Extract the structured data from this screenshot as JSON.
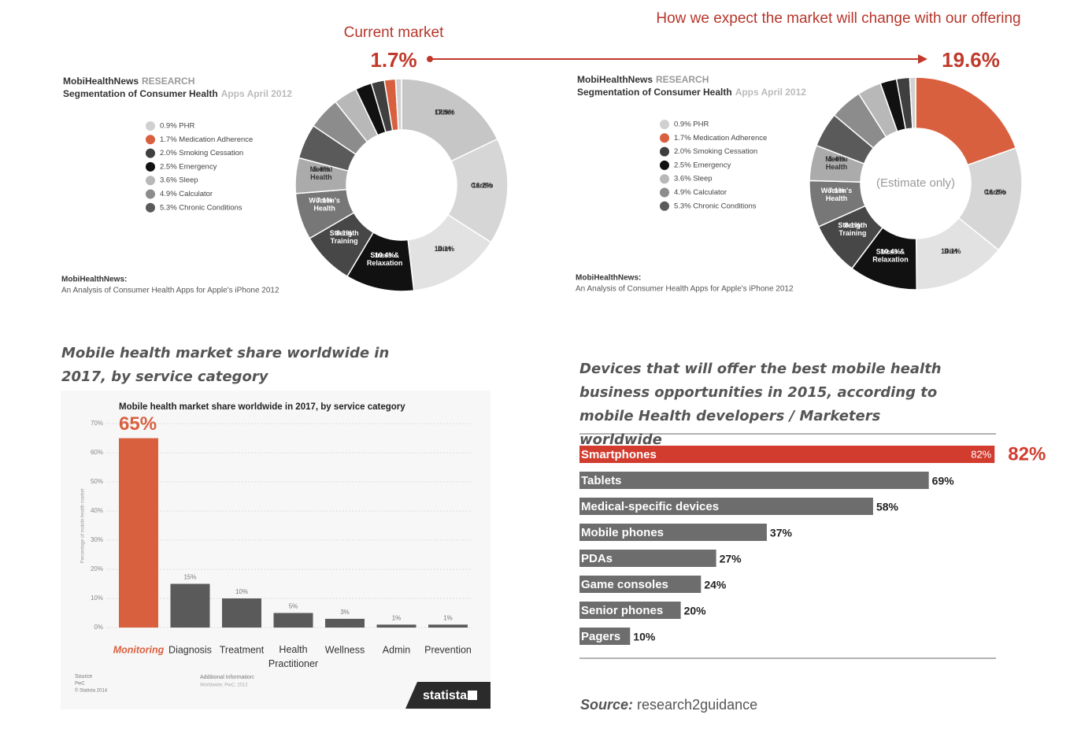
{
  "annotations": {
    "current_label": "Current market",
    "future_label": "How we expect the market will change with our offering"
  },
  "chart_data": [
    {
      "type": "donut",
      "header": [
        "MobiHealthNews",
        "RESEARCH"
      ],
      "subheader": [
        "Segmentation of Consumer Health",
        "Apps April 2012"
      ],
      "categories": [
        "Other",
        "Cardio",
        "Diet",
        "Stress & Relaxation",
        "Strength Training",
        "Women's Health",
        "Mental Health",
        null,
        null,
        null,
        null,
        null,
        null,
        null
      ],
      "values": [
        17.9,
        16.2,
        14.1,
        10.4,
        8.1,
        7.1,
        5.4,
        5.3,
        4.9,
        3.6,
        2.5,
        2.0,
        1.7,
        0.9
      ],
      "value_labels": [
        "17.9%",
        "16.2%",
        "14.1%",
        "10.4%",
        "8.1%",
        "7.1%",
        "5.4%",
        null,
        null,
        null,
        null,
        null,
        "1.7%",
        null
      ],
      "colors": [
        "#c6c6c6",
        "#d6d6d6",
        "#e2e2e2",
        "#111111",
        "#474747",
        "#777777",
        "#ababab",
        "#5a5a5a",
        "#8c8c8c",
        "#b8b8b8",
        "#111111",
        "#3f3f3f",
        "#d9603f",
        "#d0d0d0"
      ],
      "legend": [
        {
          "label": "0.9% PHR",
          "color": "#d0d0d0"
        },
        {
          "label": "1.7% Medication Adherence",
          "color": "#d9603f"
        },
        {
          "label": "2.0% Smoking Cessation",
          "color": "#3f3f3f"
        },
        {
          "label": "2.5% Emergency",
          "color": "#111111"
        },
        {
          "label": "3.6% Sleep",
          "color": "#b8b8b8"
        },
        {
          "label": "4.9% Calculator",
          "color": "#8c8c8c"
        },
        {
          "label": "5.3% Chronic Conditions",
          "color": "#5a5a5a"
        }
      ],
      "footer": [
        "MobiHealthNews:",
        "An Analysis of Consumer Health Apps for Apple's iPhone 2012"
      ]
    },
    {
      "type": "donut",
      "header": [
        "MobiHealthNews",
        "RESEARCH"
      ],
      "subheader": [
        "Segmentation of Consumer Health",
        "Apps April 2012"
      ],
      "center_label": "(Estimate only)",
      "categories": [
        null,
        "Cardio",
        "Diet",
        "Stress & Relaxation",
        "Strength Training",
        "Women's Health",
        "Mental Health",
        null,
        null,
        null,
        null,
        null,
        null
      ],
      "values": [
        19.6,
        16.2,
        14.1,
        10.4,
        8.1,
        7.1,
        5.4,
        5.3,
        4.9,
        3.6,
        2.5,
        2.0,
        0.9
      ],
      "value_labels": [
        "19.6%",
        "16.2%",
        "14.1%",
        "10.4%",
        "8.1%",
        "7.1%",
        "5.4%",
        null,
        null,
        null,
        null,
        null,
        null
      ],
      "colors": [
        "#d9603f",
        "#d6d6d6",
        "#e2e2e2",
        "#111111",
        "#474747",
        "#777777",
        "#ababab",
        "#5a5a5a",
        "#8c8c8c",
        "#b8b8b8",
        "#111111",
        "#3f3f3f",
        "#d0d0d0"
      ],
      "legend": [
        {
          "label": "0.9% PHR",
          "color": "#d0d0d0"
        },
        {
          "label": "1.7% Medication Adherence",
          "color": "#d9603f"
        },
        {
          "label": "2.0% Smoking Cessation",
          "color": "#3f3f3f"
        },
        {
          "label": "2.5% Emergency",
          "color": "#111111"
        },
        {
          "label": "3.6% Sleep",
          "color": "#b8b8b8"
        },
        {
          "label": "4.9% Calculator",
          "color": "#8c8c8c"
        },
        {
          "label": "5.3% Chronic Conditions",
          "color": "#5a5a5a"
        }
      ],
      "footer": [
        "MobiHealthNews:",
        "An Analysis of Consumer Health Apps for Apple's iPhone 2012"
      ]
    },
    {
      "type": "bar",
      "title": "Mobile health market share worldwide in 2017, by service category",
      "inner_title": "Mobile health market share worldwide in 2017, by service category",
      "categories": [
        "Monitoring",
        "Diagnosis",
        "Treatment",
        "Health Practitioner",
        "Wellness",
        "Admin",
        "Prevention"
      ],
      "values": [
        65,
        15,
        10,
        5,
        3,
        1,
        1
      ],
      "value_labels": [
        "65%",
        "15%",
        "10%",
        "5%",
        "3%",
        "1%",
        "1%"
      ],
      "colors": [
        "#d9603f",
        "#5a5a5a",
        "#5a5a5a",
        "#5a5a5a",
        "#5a5a5a",
        "#5a5a5a",
        "#5a5a5a"
      ],
      "highlight_color": "#d9603f",
      "ylim": [
        0,
        70
      ],
      "yticks": [
        {
          "value": 0,
          "label": "0%"
        },
        {
          "value": 10,
          "label": "10%"
        },
        {
          "value": 20,
          "label": "20%"
        },
        {
          "value": 30,
          "label": "30%"
        },
        {
          "value": 40,
          "label": "40%"
        },
        {
          "value": 50,
          "label": "50%"
        },
        {
          "value": 60,
          "label": "60%"
        },
        {
          "value": 70,
          "label": "70%"
        }
      ],
      "ylabel": "Percentage of mobile health market",
      "grid": true,
      "source": [
        "Source",
        "PwC",
        "© Statista 2014"
      ],
      "additional_info": [
        "Additional Information:",
        "Worldwide; PwC; 2012"
      ],
      "brand": "statista"
    },
    {
      "type": "hbar",
      "title": "Devices that will offer the best mobile health business opportunities in 2015, according to mobile Health developers / Marketers worldwide",
      "categories": [
        "Smartphones",
        "Tablets",
        "Medical-specific devices",
        "Mobile phones",
        "PDAs",
        "Game consoles",
        "Senior phones",
        "Pagers"
      ],
      "values": [
        82,
        69,
        58,
        37,
        27,
        24,
        20,
        10
      ],
      "value_labels": [
        "82%",
        "69%",
        "58%",
        "37%",
        "27%",
        "24%",
        "20%",
        "10%"
      ],
      "colors": [
        "#d23c2f",
        "#6d6d6d",
        "#6d6d6d",
        "#6d6d6d",
        "#6d6d6d",
        "#6d6d6d",
        "#6d6d6d",
        "#6d6d6d"
      ],
      "highlight_color": "#d23c2f",
      "source": [
        "Source:",
        "research2guidance"
      ]
    }
  ]
}
